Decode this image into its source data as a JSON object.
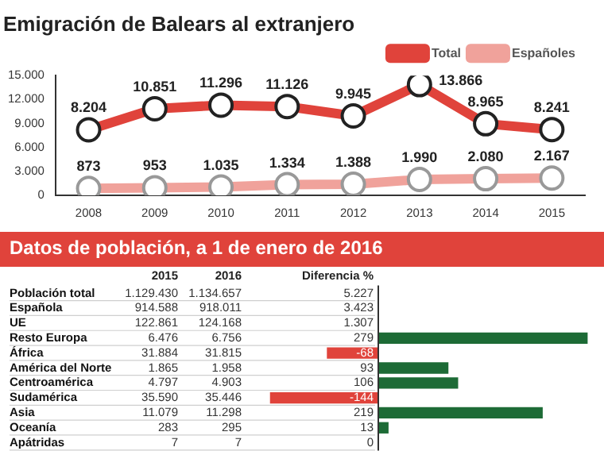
{
  "chart_data": [
    {
      "type": "line",
      "title": "Emigración de Balears al extranjero",
      "categories": [
        "2008",
        "2009",
        "2010",
        "2011",
        "2012",
        "2013",
        "2014",
        "2015"
      ],
      "series": [
        {
          "name": "Total",
          "color": "#e0433b",
          "values": [
            8204,
            10851,
            11296,
            11126,
            9945,
            13866,
            8965,
            8241
          ],
          "value_labels": [
            "8.204",
            "10.851",
            "11.296",
            "11.126",
            "9.945",
            "13.866",
            "8.965",
            "8.241"
          ]
        },
        {
          "name": "Españoles",
          "color": "#f0a29b",
          "values": [
            873,
            953,
            1035,
            1334,
            1388,
            1990,
            2080,
            2167
          ],
          "value_labels": [
            "873",
            "953",
            "1.035",
            "1.334",
            "1.388",
            "1.990",
            "2.080",
            "2.167"
          ]
        }
      ],
      "ylim": [
        0,
        15000
      ],
      "yticks": [
        0,
        {
          "value": 3000,
          "label": "3.000"
        },
        {
          "value": 6000,
          "label": "6.000"
        },
        {
          "value": 9000,
          "label": "9.000"
        },
        {
          "value": 12000,
          "label": "12.000"
        },
        {
          "value": 15000,
          "label": "15.000"
        }
      ],
      "legend": "top right",
      "marker": "circle",
      "grid": false
    },
    {
      "type": "other",
      "title": "Datos de población, a 1 de enero de 2016",
      "categories": [
        "Población total",
        "Española",
        "UE",
        "Resto Europa",
        "África",
        "América del Norte",
        "Centroamérica",
        "Sudamérica",
        "Asia",
        "Oceanía",
        "Apátridas"
      ],
      "series": [
        {
          "name": "2015",
          "type": "other",
          "values": [
            1129430,
            914588,
            122861,
            6476,
            31884,
            1865,
            4797,
            35590,
            11079,
            283,
            7
          ],
          "value_labels": [
            "1.129.430",
            "914.588",
            "122.861",
            "6.476",
            "31.884",
            "1.865",
            "4.797",
            "35.590",
            "11.079",
            "283",
            "7"
          ]
        },
        {
          "name": "2016",
          "type": "other",
          "values": [
            1134657,
            918011,
            124168,
            6756,
            31815,
            1958,
            4903,
            35446,
            11298,
            295,
            7
          ],
          "value_labels": [
            "1.134.657",
            "918.011",
            "124.168",
            "6.756",
            "31.815",
            "1.958",
            "4.903",
            "35.446",
            "11.298",
            "295",
            "7"
          ]
        },
        {
          "name": "Diferencia %",
          "type": "bar",
          "values": [
            null,
            null,
            null,
            279,
            -68,
            93,
            106,
            -144,
            219,
            13,
            0
          ],
          "colors": [
            "#1d6b36",
            "#1d6b36",
            "#1d6b36",
            "#1d6b36",
            "#e0433b",
            "#1d6b36",
            "#1d6b36",
            "#e0433b",
            "#1d6b36",
            "#1d6b36",
            "#1d6b36"
          ],
          "value_labels": [
            "5.227",
            "3.423",
            "1.307",
            "279",
            "-68",
            "93",
            "106",
            "-144",
            "219",
            "13",
            "0"
          ]
        }
      ],
      "legend": false
    }
  ]
}
